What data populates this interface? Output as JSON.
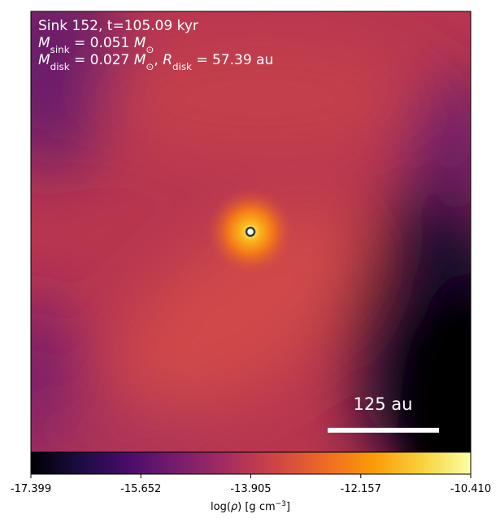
{
  "chart_data": {
    "type": "density-map",
    "title_lines": [
      [
        "Sink 152, t=105.09 kyr"
      ],
      [
        "M",
        "sink",
        " = 0.051 ",
        "M",
        "⊙"
      ],
      [
        "M",
        "disk",
        " = 0.027 ",
        "M",
        "⊙",
        ", ",
        "R",
        "disk",
        " = 57.39 au"
      ]
    ],
    "scale_bar_label": "125 au",
    "colorbar": {
      "label": [
        "log(",
        "ρ",
        ") [g cm",
        "−3",
        "]"
      ],
      "lim": [
        -17.399,
        -10.41
      ],
      "ticks": [
        -17.399,
        -15.652,
        -13.905,
        -12.157,
        {
          "value": -10.41,
          "label": "-10.410"
        }
      ],
      "colors": [
        "#000004",
        "#1b0c41",
        "#4a0c6b",
        "#781c6d",
        "#a52c60",
        "#cf4446",
        "#ed6925",
        "#fb9b06",
        "#f7d13d",
        "#fcffa4"
      ]
    }
  }
}
